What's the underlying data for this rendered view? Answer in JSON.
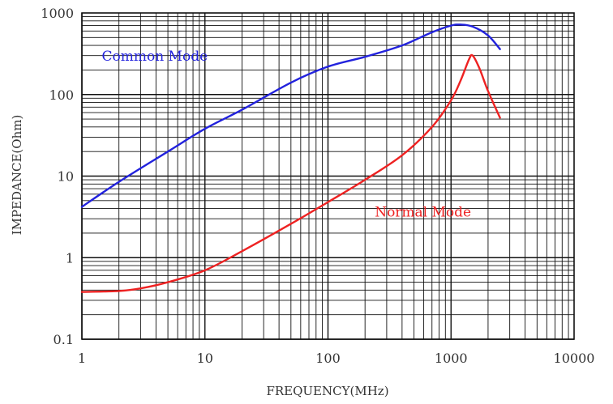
{
  "chart_data": {
    "type": "line",
    "xlabel": "FREQUENCY(MHz)",
    "ylabel": "IMPEDANCE(Ohm)",
    "xscale": "log",
    "yscale": "log",
    "xlim": [
      1,
      10000
    ],
    "ylim": [
      0.1,
      1000
    ],
    "grid": true,
    "x_tick_labels": [
      "1",
      "10",
      "100",
      "1000",
      "10000"
    ],
    "y_tick_labels": [
      "0.1",
      "1",
      "10",
      "100",
      "1000"
    ],
    "series": [
      {
        "name": "Common Mode",
        "color": "#2222dd",
        "label_at": [
          1.45,
          260
        ],
        "points": [
          [
            1,
            4.2
          ],
          [
            2,
            8.5
          ],
          [
            5,
            20
          ],
          [
            10,
            38
          ],
          [
            20,
            65
          ],
          [
            50,
            140
          ],
          [
            100,
            220
          ],
          [
            200,
            290
          ],
          [
            400,
            400
          ],
          [
            700,
            580
          ],
          [
            1000,
            700
          ],
          [
            1200,
            720
          ],
          [
            1500,
            680
          ],
          [
            2000,
            530
          ],
          [
            2500,
            360
          ]
        ]
      },
      {
        "name": "Normal Mode",
        "color": "#ee2222",
        "label_at": [
          240,
          3.2
        ],
        "points": [
          [
            1,
            0.38
          ],
          [
            2,
            0.39
          ],
          [
            3,
            0.42
          ],
          [
            5,
            0.5
          ],
          [
            10,
            0.7
          ],
          [
            20,
            1.2
          ],
          [
            50,
            2.6
          ],
          [
            100,
            4.8
          ],
          [
            200,
            9
          ],
          [
            400,
            18
          ],
          [
            700,
            40
          ],
          [
            1000,
            85
          ],
          [
            1200,
            150
          ],
          [
            1400,
            270
          ],
          [
            1500,
            300
          ],
          [
            1700,
            210
          ],
          [
            2000,
            110
          ],
          [
            2500,
            52
          ]
        ]
      }
    ]
  }
}
